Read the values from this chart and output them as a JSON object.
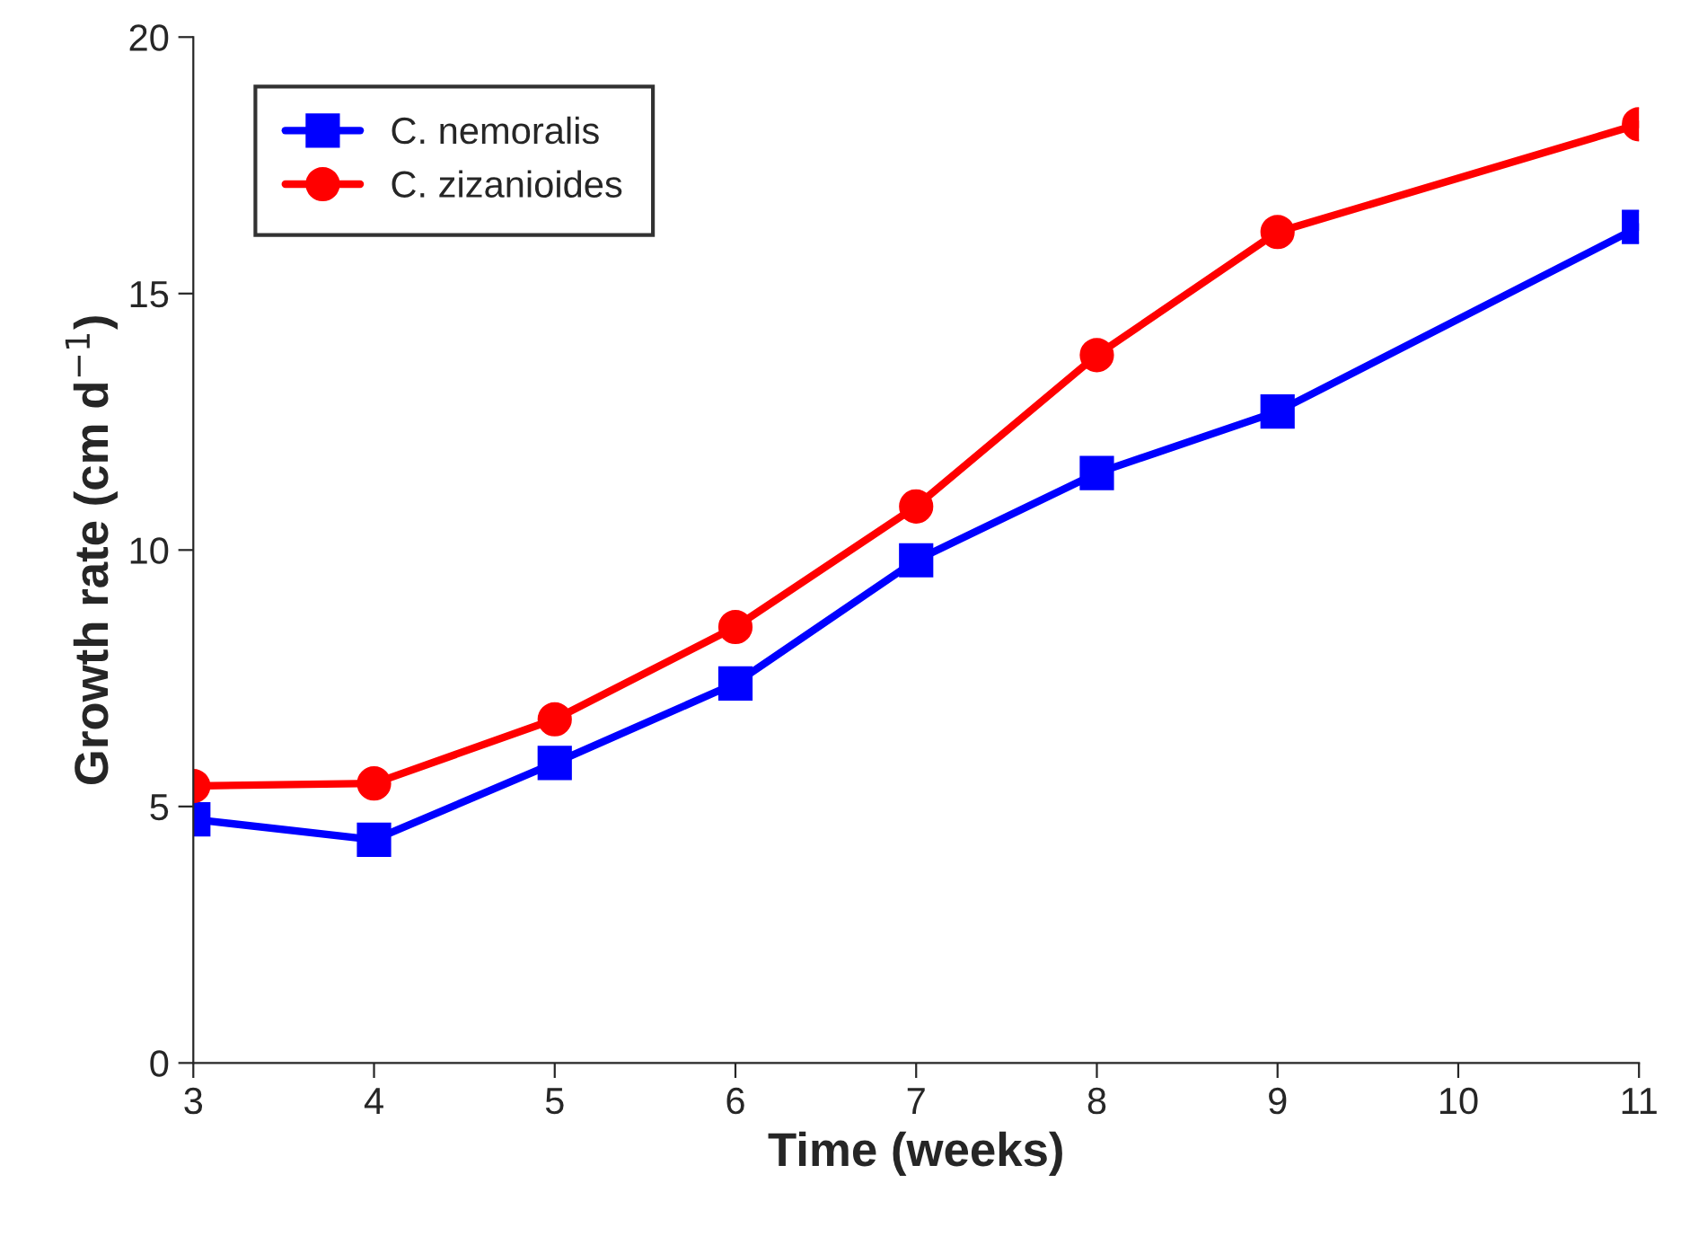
{
  "chart_data": {
    "type": "line",
    "xlabel": "Time (weeks)",
    "ylabel": "Growth rate (cm d$^{−1}$)",
    "x": [
      3,
      4,
      5,
      6,
      7,
      8,
      9,
      11
    ],
    "series": [
      {
        "name": "C. nemoralis",
        "color": "#0000ff",
        "marker": "square",
        "values": [
          4.75,
          4.35,
          5.85,
          7.4,
          9.8,
          11.5,
          12.7,
          16.3
        ]
      },
      {
        "name": "C. zizanioides",
        "color": "#ff0000",
        "marker": "circle",
        "values": [
          5.4,
          5.45,
          6.7,
          8.5,
          10.85,
          13.8,
          16.2,
          18.3
        ]
      }
    ],
    "xlim": [
      3,
      11
    ],
    "xticks": [
      3,
      4,
      5,
      6,
      7,
      8,
      9,
      10,
      11
    ],
    "ylim": [
      0,
      20
    ],
    "yticks": [
      0,
      5,
      10,
      15,
      20
    ],
    "legend": "top left",
    "grid": false,
    "line_style": "solid"
  }
}
